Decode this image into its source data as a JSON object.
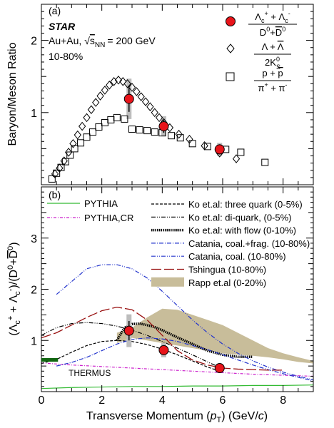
{
  "chart_data": [
    {
      "type": "scatter",
      "panel_label": "(a)",
      "experiment": "STAR",
      "collision_system": "Au+Au, ",
      "energy": "= 200 GeV",
      "centrality": "10-80%",
      "ylabel": "Baryon/Meson Ratio",
      "xlim": [
        0,
        9
      ],
      "ylim": [
        0,
        2.5
      ],
      "yticks": [
        1,
        2
      ],
      "legend_placement": "top-right",
      "series": [
        {
          "key": "lc",
          "marker": "red-filled-circle",
          "color": "#e8141a",
          "x": [
            2.9,
            4.05,
            5.9
          ],
          "y": [
            1.19,
            0.81,
            0.49
          ],
          "yerr": [
            0.18,
            0.09,
            0.07
          ],
          "syst": [
            0.28,
            0.14,
            0.09
          ]
        },
        {
          "key": "lambda",
          "marker": "open-diamond",
          "color": "#000000",
          "x": [
            0.45,
            0.6,
            0.75,
            0.9,
            1.05,
            1.2,
            1.35,
            1.5,
            1.65,
            1.8,
            1.95,
            2.1,
            2.25,
            2.4,
            2.55,
            2.7,
            2.85,
            3.0,
            3.15,
            3.3,
            3.45,
            3.6,
            3.75,
            3.9,
            4.05,
            4.25,
            4.55,
            4.9,
            5.4,
            5.9,
            6.45
          ],
          "y": [
            0.15,
            0.23,
            0.33,
            0.45,
            0.57,
            0.69,
            0.81,
            0.93,
            1.04,
            1.14,
            1.23,
            1.31,
            1.38,
            1.43,
            1.45,
            1.43,
            1.4,
            1.35,
            1.29,
            1.22,
            1.15,
            1.08,
            1.0,
            0.93,
            0.86,
            0.79,
            0.7,
            0.63,
            0.54,
            0.44,
            0.36
          ]
        },
        {
          "key": "proton",
          "marker": "open-square",
          "color": "#000000",
          "x": [
            0.35,
            0.5,
            0.65,
            0.8,
            0.95,
            1.1,
            1.3,
            1.5,
            1.7,
            1.9,
            2.1,
            2.3,
            2.5,
            2.75,
            3.0,
            3.25,
            3.5,
            3.75,
            4.0,
            4.3,
            4.6,
            5.0,
            5.5,
            6.1,
            6.6,
            7.4
          ],
          "y": [
            0.08,
            0.16,
            0.24,
            0.32,
            0.41,
            0.5,
            0.58,
            0.66,
            0.73,
            0.8,
            0.86,
            0.9,
            0.93,
            0.91,
            0.77,
            0.76,
            0.75,
            0.73,
            0.72,
            0.68,
            0.65,
            0.57,
            0.53,
            0.49,
            0.45,
            0.31
          ]
        }
      ],
      "legend": [
        {
          "key": "lc",
          "num": "Λc+ + Λc-",
          "den": "D0+D0"
        },
        {
          "key": "lambda",
          "num": "Λ + Λ",
          "den": "2K0s"
        },
        {
          "key": "proton",
          "num": "p + p",
          "den": "π+ + π-"
        }
      ]
    },
    {
      "type": "line",
      "panel_label": "(b)",
      "xlabel": "Transverse Momentum (pT) (GeV/c)",
      "ylabel": "(Λc+ + Λc-)/(D0+D0)",
      "xlim": [
        0,
        9
      ],
      "ylim": [
        0,
        4
      ],
      "xticks": [
        0,
        2,
        4,
        6,
        8
      ],
      "yticks": [
        1,
        2,
        3
      ],
      "data_points": {
        "color": "#e8141a",
        "x": [
          2.9,
          4.05,
          5.9
        ],
        "y": [
          1.19,
          0.81,
          0.46
        ],
        "yerr": [
          0.19,
          0.09,
          0.05
        ],
        "syst": [
          0.32,
          0.14,
          0.07
        ]
      },
      "series": [
        {
          "key": "pythia",
          "name": "PYTHIA",
          "color": "#33bb33",
          "dash": "solid",
          "width": 1.2,
          "x": [
            0,
            1,
            2,
            3,
            4,
            5,
            6,
            7,
            8,
            9
          ],
          "y": [
            0.06,
            0.08,
            0.09,
            0.1,
            0.1,
            0.11,
            0.11,
            0.12,
            0.12,
            0.13
          ]
        },
        {
          "key": "pythia_cr",
          "name": "PYTHIA,CR",
          "color": "#cc22cc",
          "dash": "4 2 1 2",
          "width": 1.2,
          "x": [
            0,
            1,
            2,
            3,
            4,
            5,
            6,
            7,
            8,
            9
          ],
          "y": [
            0.56,
            0.52,
            0.49,
            0.46,
            0.43,
            0.4,
            0.37,
            0.34,
            0.32,
            0.3
          ]
        },
        {
          "key": "ko_three",
          "name": "Ko et.al: three quark (0-5%)",
          "color": "#000000",
          "dash": "4 2",
          "width": 1.2,
          "x": [
            0,
            0.5,
            1,
            1.5,
            2,
            2.5,
            3,
            3.5,
            4,
            4.5,
            5,
            5.5,
            6
          ],
          "y": [
            0.55,
            0.63,
            0.77,
            0.9,
            0.98,
            1.0,
            0.98,
            0.92,
            0.83,
            0.72,
            0.6,
            0.48,
            0.38
          ]
        },
        {
          "key": "ko_di",
          "name": "Ko et.al: di-quark, (0-5%)",
          "color": "#000000",
          "dash": "6 2 1 2 1 2",
          "width": 1.2,
          "x": [
            0,
            0.5,
            1,
            1.5,
            2,
            2.5,
            3,
            3.5,
            4,
            4.5,
            5,
            5.5,
            6
          ],
          "y": [
            1.1,
            1.25,
            1.33,
            1.35,
            1.33,
            1.28,
            1.2,
            1.1,
            0.98,
            0.85,
            0.72,
            0.58,
            0.45
          ]
        },
        {
          "key": "ko_flow",
          "name": "Ko et.al: with flow (0-10%)",
          "color": "#000000",
          "dash": "1.5 1.2",
          "width": 3.5,
          "x": [
            2.5,
            2.75,
            3,
            3.25,
            3.5,
            3.75,
            4,
            4.5,
            5,
            5.5,
            6,
            6.5,
            7
          ],
          "y": [
            1.0,
            1.25,
            1.32,
            1.33,
            1.3,
            1.26,
            1.2,
            1.06,
            0.93,
            0.8,
            0.72,
            0.68,
            0.68
          ]
        },
        {
          "key": "catania_frag",
          "name": "Catania, coal.+frag. (10-80%)",
          "color": "#2233cc",
          "dash": "6 2 1 2",
          "width": 1.2,
          "x": [
            0.5,
            1,
            1.5,
            2,
            2.5,
            3,
            3.5,
            4,
            4.5,
            5,
            5.5,
            6,
            6.5,
            7,
            7.5,
            8,
            8.5,
            9
          ],
          "y": [
            0.5,
            0.57,
            0.67,
            0.8,
            0.93,
            1.02,
            1.05,
            1.03,
            0.98,
            0.9,
            0.82,
            0.72,
            0.62,
            0.52,
            0.43,
            0.35,
            0.28,
            0.21
          ]
        },
        {
          "key": "catania",
          "name": "Catania, coal. (10-80%)",
          "color": "#2233cc",
          "dash": "6 2 1 2 1 2",
          "width": 1.2,
          "x": [
            0.5,
            1,
            1.5,
            2,
            2.5,
            3,
            3.5,
            4,
            4.5,
            5,
            5.5,
            6,
            6.5,
            7,
            7.5,
            8,
            8.5,
            9
          ],
          "y": [
            1.9,
            2.15,
            2.4,
            2.48,
            2.48,
            2.4,
            2.22,
            1.96,
            1.68,
            1.4,
            1.15,
            0.93,
            0.75,
            0.6,
            0.48,
            0.38,
            0.3,
            0.23
          ]
        },
        {
          "key": "tshingua",
          "name": "Tshingua (10-80%)",
          "color": "#991111",
          "dash": "14 4",
          "width": 1.3,
          "x": [
            0,
            0.5,
            1,
            1.5,
            2,
            2.5,
            3,
            3.5,
            4,
            4.5,
            5,
            5.5,
            6,
            6.5,
            7,
            7.5,
            8
          ],
          "y": [
            1.05,
            1.15,
            1.3,
            1.45,
            1.58,
            1.65,
            1.6,
            1.4,
            1.1,
            0.8,
            0.62,
            0.52,
            0.46,
            0.44,
            0.43,
            0.42,
            0.42
          ]
        },
        {
          "key": "rapp",
          "name": "Rapp et.al (0-20%)",
          "color": "#c8bd9a",
          "type": "band",
          "x": [
            2.5,
            3,
            3.5,
            4,
            4.5,
            5,
            5.5,
            6,
            6.5,
            7,
            7.5,
            8,
            8.5,
            9
          ],
          "ylow": [
            0.95,
            1.05,
            1.0,
            0.95,
            0.9,
            0.85,
            0.8,
            0.75,
            0.72,
            0.7,
            0.67,
            0.63,
            0.58,
            0.55
          ],
          "yhigh": [
            1.15,
            1.25,
            1.45,
            1.62,
            1.6,
            1.5,
            1.4,
            1.3,
            1.15,
            1.0,
            0.85,
            0.75,
            0.67,
            0.6
          ]
        }
      ],
      "legend_left": [
        "pythia",
        "pythia_cr"
      ],
      "legend_right": [
        "ko_three",
        "ko_di",
        "ko_flow",
        "catania_frag",
        "catania",
        "tshingua",
        "rapp"
      ],
      "thermus": {
        "label": "THERMUS",
        "color": "#116611",
        "x": [
          0,
          0.55
        ],
        "y": 0.62
      }
    }
  ]
}
